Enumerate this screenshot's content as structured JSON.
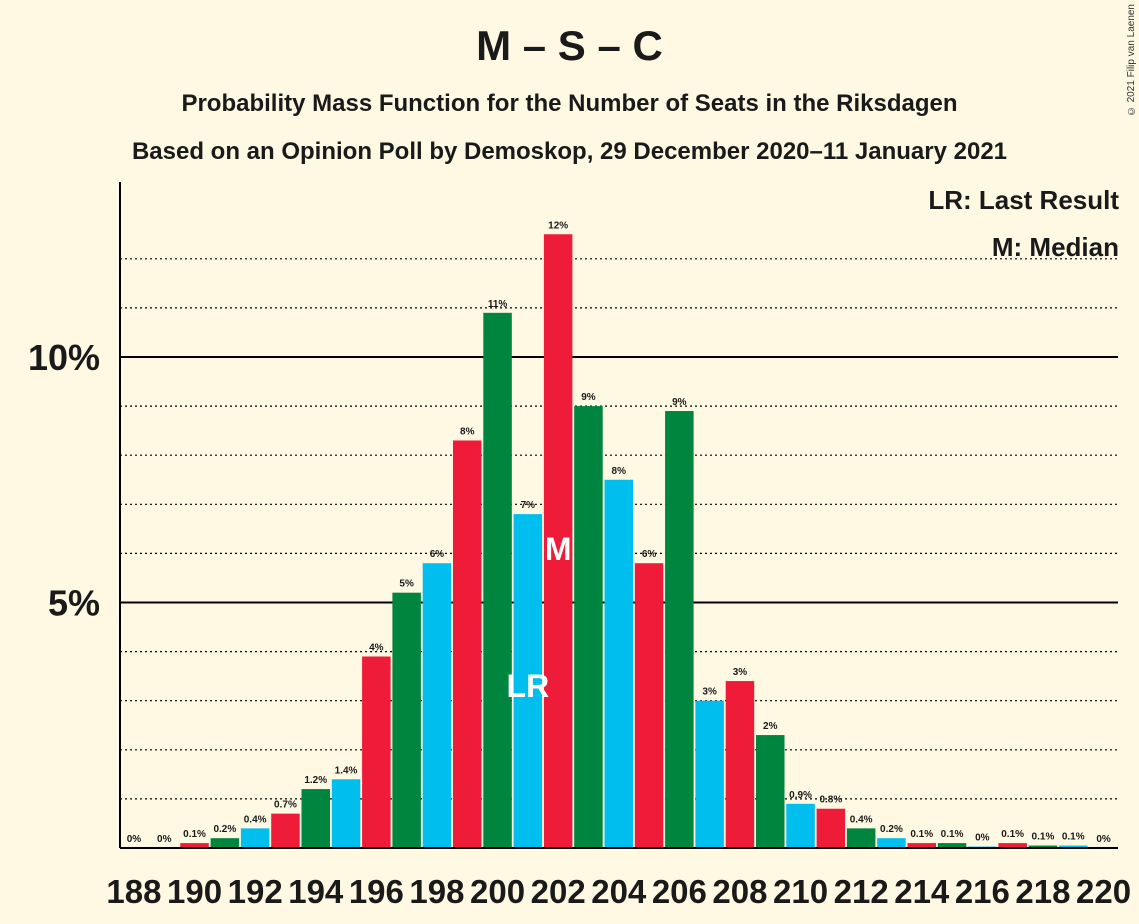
{
  "title": "M – S – C",
  "subtitle": "Probability Mass Function for the Number of Seats in the Riksdagen",
  "subtitle2": "Based on an Opinion Poll by Demoskop, 29 December 2020–11 January 2021",
  "copyright": "© 2021 Filip van Laenen",
  "legend": {
    "last_result": "LR: Last Result",
    "median": "M: Median"
  },
  "colors": {
    "background": "#FFF8E3",
    "blue": "#00BFEF",
    "red": "#EE1C38",
    "green": "#00853F",
    "axis": "#000000"
  },
  "chart_data": {
    "type": "bar",
    "x": [
      188,
      189,
      190,
      191,
      192,
      193,
      194,
      195,
      196,
      197,
      198,
      199,
      200,
      201,
      202,
      203,
      204,
      205,
      206,
      207,
      208,
      209,
      210,
      211,
      212,
      213,
      214,
      215,
      216,
      217,
      218,
      219,
      220
    ],
    "x_tick_labels": [
      "188",
      "190",
      "192",
      "194",
      "196",
      "198",
      "200",
      "202",
      "204",
      "206",
      "208",
      "210",
      "212",
      "214",
      "216",
      "218",
      "220"
    ],
    "values": [
      0.0,
      0.0,
      0.1,
      0.2,
      0.4,
      0.7,
      1.2,
      1.4,
      3.9,
      5.2,
      5.8,
      8.3,
      10.9,
      6.8,
      12.5,
      9.0,
      7.5,
      5.8,
      8.9,
      3.0,
      3.4,
      2.3,
      0.9,
      0.8,
      0.4,
      0.2,
      0.1,
      0.1,
      0.03,
      0.1,
      0.05,
      0.05,
      0.0
    ],
    "value_labels": [
      "0%",
      "0%",
      "0.1%",
      "0.2%",
      "0.4%",
      "0.7%",
      "1.2%",
      "1.4%",
      "4%",
      "5%",
      "6%",
      "8%",
      "11%",
      "7%",
      "12%",
      "9%",
      "8%",
      "6%",
      "9%",
      "3%",
      "3%",
      "2%",
      "0.9%",
      "0.8%",
      "0.4%",
      "0.2%",
      "0.1%",
      "0.1%",
      "0%",
      "0.1%",
      "0.1%",
      "0.1%",
      "0%"
    ],
    "bar_colors": [
      "blue",
      "red",
      "red",
      "green",
      "blue",
      "red",
      "green",
      "blue",
      "red",
      "green",
      "blue",
      "red",
      "green",
      "blue",
      "red",
      "green",
      "blue",
      "red",
      "green",
      "blue",
      "red",
      "green",
      "blue",
      "red",
      "green",
      "blue",
      "red",
      "green",
      "blue",
      "red",
      "green",
      "blue",
      "red"
    ],
    "y_ticks": [
      {
        "value": 5,
        "label": "5%"
      },
      {
        "value": 10,
        "label": "10%"
      }
    ],
    "ylim": [
      0,
      13.5
    ],
    "grid": "dotted every 1%, solid at 5% and 10%",
    "last_result": {
      "x": 201,
      "label": "LR"
    },
    "median": {
      "x": 202,
      "label": "M"
    },
    "legend_position": "top-right"
  }
}
